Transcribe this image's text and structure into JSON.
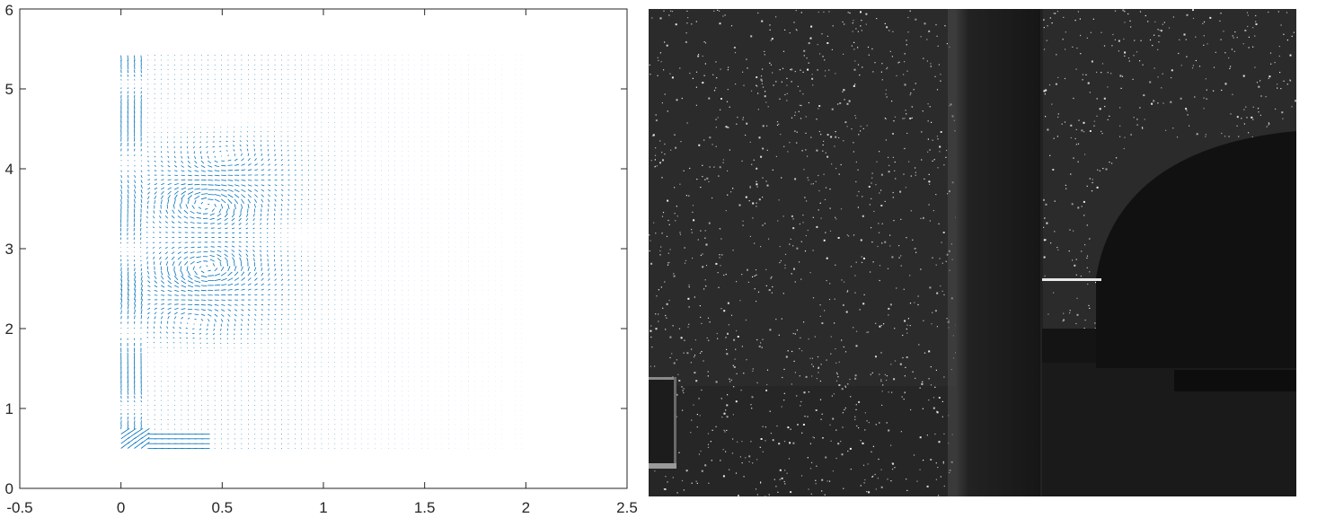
{
  "chart_data": [
    {
      "type": "quiver",
      "title": "",
      "xlabel": "",
      "ylabel": "",
      "xlim": [
        -0.5,
        2.5
      ],
      "ylim": [
        0,
        6
      ],
      "xticks": [
        "-0.5",
        "0",
        "0.5",
        "1",
        "1.5",
        "2",
        "2.5"
      ],
      "yticks": [
        "0",
        "1",
        "2",
        "3",
        "4",
        "5",
        "6"
      ],
      "grid": false,
      "legend": "none",
      "color": "#0072BD",
      "field": {
        "x_range": [
          0,
          2.02
        ],
        "y_range": [
          0.5,
          5.45
        ],
        "x_spacing": 0.033,
        "y_spacing": 0.06,
        "vortices": [
          {
            "x": 0.42,
            "y": 3.55,
            "strength": 0.09,
            "sense": "clockwise"
          },
          {
            "x": 0.42,
            "y": 2.75,
            "strength": 0.09,
            "sense": "counterclockwise"
          },
          {
            "x": 0.5,
            "y": 4.15,
            "strength": 0.05,
            "sense": "counterclockwise"
          },
          {
            "x": 0.35,
            "y": 2.1,
            "strength": 0.05,
            "sense": "clockwise"
          }
        ]
      }
    },
    {
      "type": "image",
      "image_name": "piv-particle-image",
      "description_colors": {
        "background": "#2c2c2c",
        "particles": "#e0e0e0",
        "pillar": "#151515",
        "body": "#101010"
      }
    }
  ]
}
